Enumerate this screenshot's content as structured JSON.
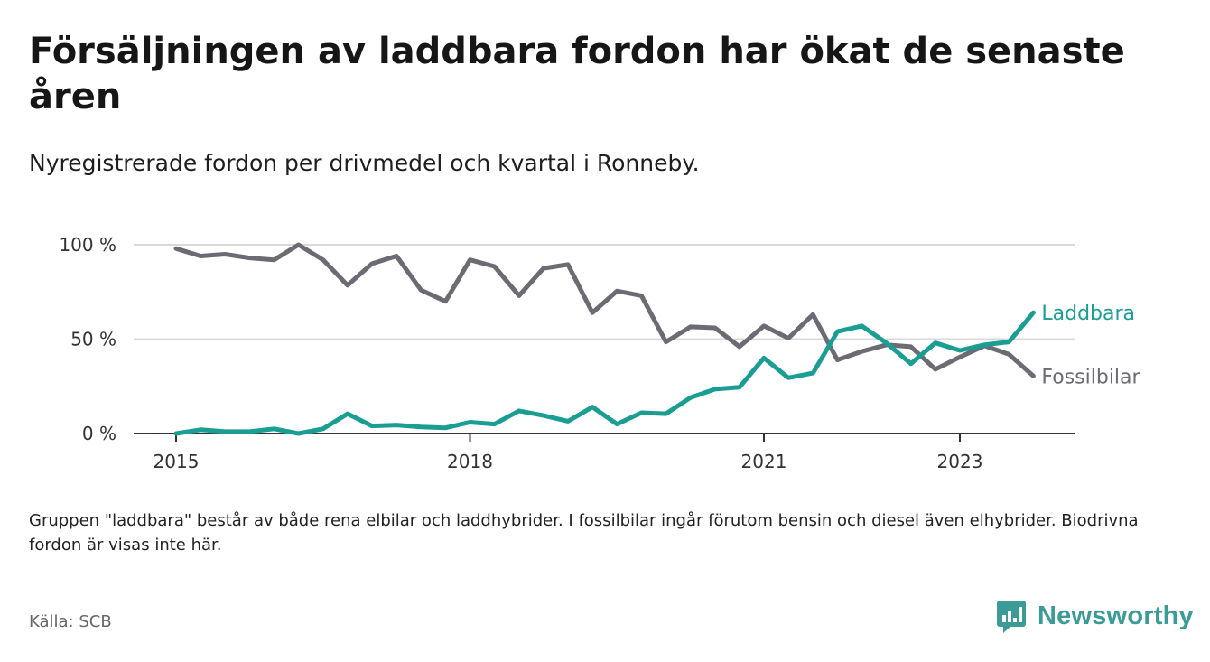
{
  "title": "Försäljningen av laddbara fordon har ökat de senaste åren",
  "subtitle": "Nyregistrerade fordon per drivmedel och kvartal i Ronneby.",
  "note": "Gruppen \"laddbara\" består av både rena elbilar och laddhybrider. I fossilbilar ingår förutom bensin och diesel även elhybrider. Biodrivna fordon är visas inte här.",
  "source": "Källa: SCB",
  "brand": "Newsworthy",
  "colors": {
    "laddbara": "#1a9e94",
    "fossil": "#6b6b73",
    "grid": "#d9d9d9",
    "axis": "#333333",
    "brand": "#3a9b97"
  },
  "chart_data": {
    "type": "line",
    "title": "Försäljningen av laddbara fordon har ökat de senaste åren",
    "xlabel": "",
    "ylabel": "",
    "ylim": [
      0,
      100
    ],
    "y_ticks": [
      0,
      50,
      100
    ],
    "y_tick_labels": [
      "0 %",
      "50 %",
      "100 %"
    ],
    "x_ticks": [
      2015,
      2018,
      2021,
      2023
    ],
    "x_tick_labels": [
      "2015",
      "2018",
      "2021",
      "2023"
    ],
    "x": [
      2015.0,
      2015.25,
      2015.5,
      2015.75,
      2016.0,
      2016.25,
      2016.5,
      2016.75,
      2017.0,
      2017.25,
      2017.5,
      2017.75,
      2018.0,
      2018.25,
      2018.5,
      2018.75,
      2019.0,
      2019.25,
      2019.5,
      2019.75,
      2020.0,
      2020.25,
      2020.5,
      2020.75,
      2021.0,
      2021.25,
      2021.5,
      2021.75,
      2022.0,
      2022.25,
      2022.5,
      2022.75,
      2023.0,
      2023.25,
      2023.5,
      2023.75
    ],
    "series": [
      {
        "name": "Laddbara",
        "values": [
          0,
          2,
          1,
          1,
          2.5,
          0,
          2.5,
          10.5,
          4,
          4.5,
          3.5,
          3,
          6,
          5,
          12,
          9.5,
          6.5,
          14,
          5,
          11,
          10.5,
          19,
          23.5,
          24.5,
          40,
          29.5,
          32,
          54,
          57,
          48,
          37,
          48,
          44,
          47,
          48.5,
          64
        ]
      },
      {
        "name": "Fossilbilar",
        "values": [
          98,
          94,
          95,
          93,
          92,
          100,
          92,
          78.5,
          90,
          94,
          76,
          70,
          92,
          88.5,
          73,
          87.5,
          89.5,
          64,
          75.5,
          73,
          48.5,
          56.5,
          56,
          46,
          57,
          50.5,
          63,
          39,
          43.5,
          47,
          46,
          34,
          40.5,
          46.5,
          42,
          30.5
        ]
      }
    ]
  }
}
